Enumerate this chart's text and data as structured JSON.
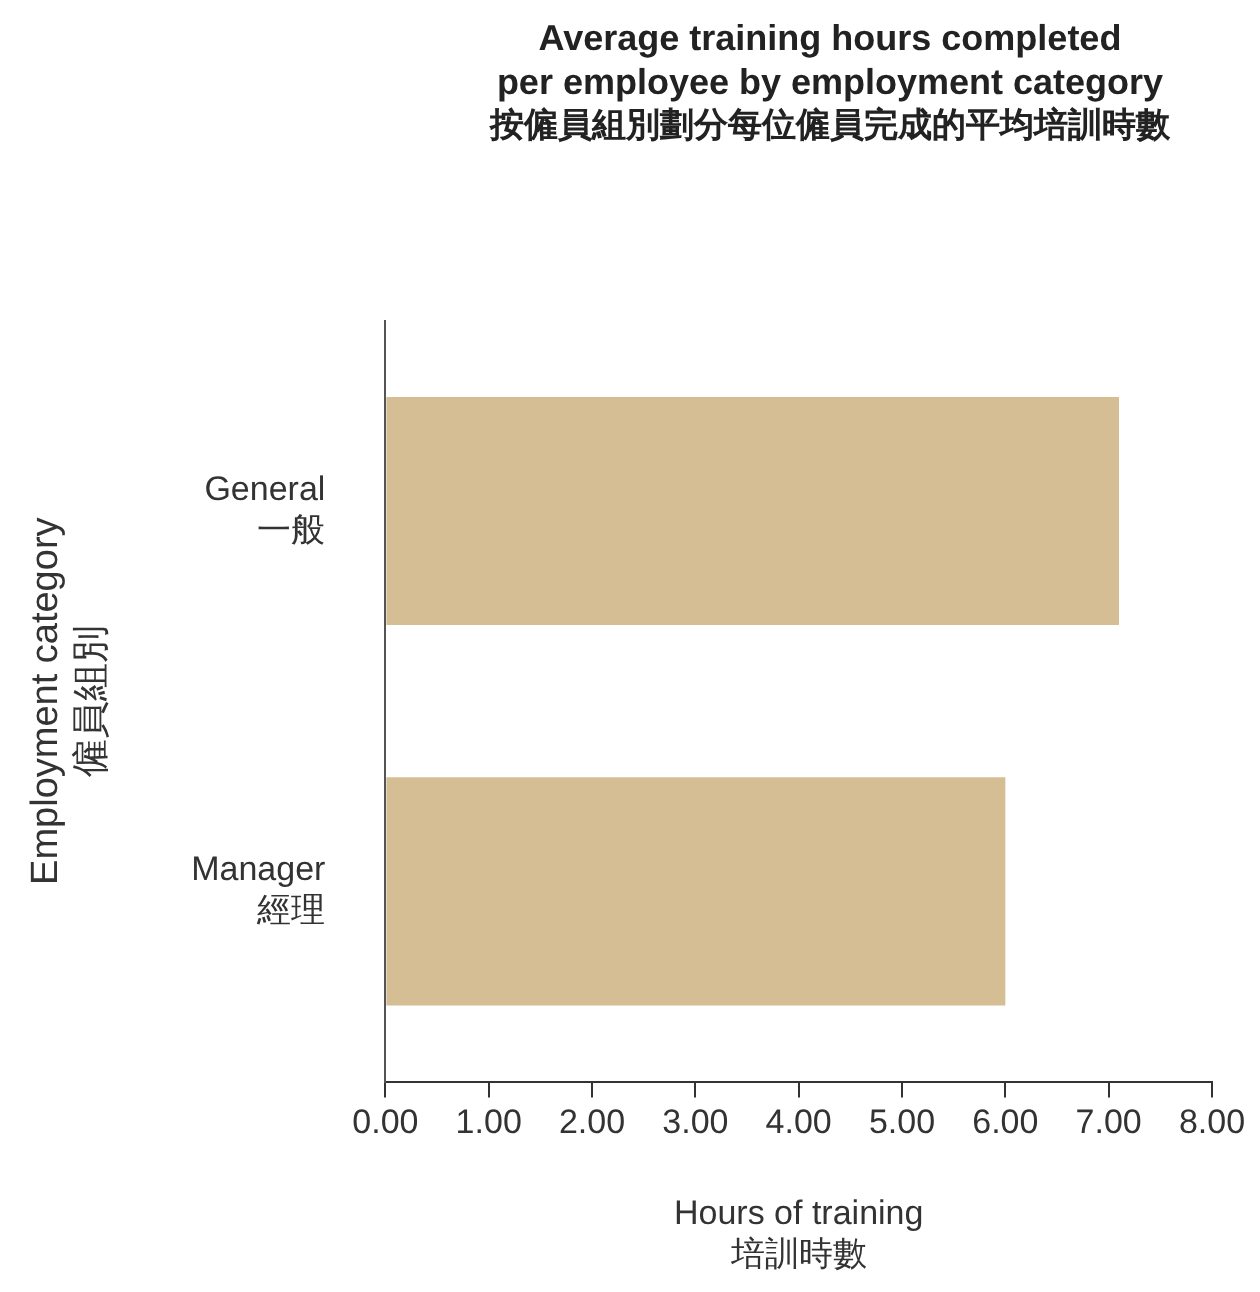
{
  "chart_data": {
    "type": "bar",
    "orientation": "horizontal",
    "title": "Average training hours completed\nper employee by employment category",
    "subtitle": "按僱員組別劃分每位僱員完成的平均培訓時數",
    "categories": [
      "General\n一般",
      "Manager\n經理"
    ],
    "values": [
      7.1,
      6.0
    ],
    "color": "#d5be94",
    "xlabel": "Hours of training\n培訓時數",
    "ylabel": "Employment category\n僱員組別",
    "xlim": [
      0,
      8
    ],
    "xticks": [
      {
        "value": 0,
        "label": "0.00"
      },
      {
        "value": 1,
        "label": "1.00"
      },
      {
        "value": 2,
        "label": "2.00"
      },
      {
        "value": 3,
        "label": "3.00"
      },
      {
        "value": 4,
        "label": "4.00"
      },
      {
        "value": 5,
        "label": "5.00"
      },
      {
        "value": 6,
        "label": "6.00"
      },
      {
        "value": 7,
        "label": "7.00"
      },
      {
        "value": 8,
        "label": "8.00"
      }
    ],
    "grid": false,
    "legend": false
  }
}
